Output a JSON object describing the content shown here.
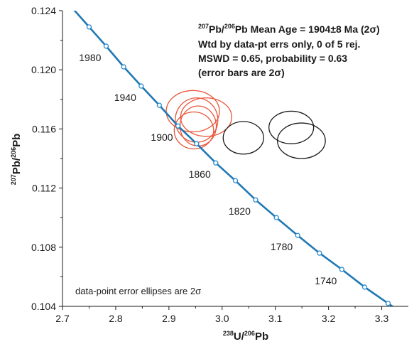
{
  "chart_data": {
    "type": "scatter",
    "title": "",
    "xlabel": {
      "sup1": "238",
      "main1": "U/",
      "sup2": "206",
      "main2": "Pb"
    },
    "ylabel": {
      "sup1": "207",
      "main1": "Pb/",
      "sup2": "206",
      "main2": "Pb"
    },
    "xlim": [
      2.7,
      3.35
    ],
    "ylim": [
      0.104,
      0.124
    ],
    "x_ticks": [
      "2.7",
      "2.8",
      "2.9",
      "3.0",
      "3.1",
      "3.2",
      "3.3"
    ],
    "y_ticks": [
      "0.104",
      "0.108",
      "0.112",
      "0.116",
      "0.120",
      "0.124"
    ],
    "grid": false,
    "concordia": {
      "color": "#1f78b4",
      "marker_color": "#2a8ad0",
      "points": [
        {
          "age": 1990,
          "x": 2.75,
          "y": 0.1229
        },
        {
          "age": 1980,
          "x": 2.782,
          "y": 0.1216
        },
        {
          "age": 1960,
          "x": 2.815,
          "y": 0.1202
        },
        {
          "age": 1940,
          "x": 2.848,
          "y": 0.1189
        },
        {
          "age": 1920,
          "x": 2.882,
          "y": 0.1176
        },
        {
          "age": 1900,
          "x": 2.917,
          "y": 0.1162
        },
        {
          "age": 1880,
          "x": 2.952,
          "y": 0.115
        },
        {
          "age": 1860,
          "x": 2.988,
          "y": 0.1137
        },
        {
          "age": 1840,
          "x": 3.025,
          "y": 0.1125
        },
        {
          "age": 1820,
          "x": 3.063,
          "y": 0.1112
        },
        {
          "age": 1800,
          "x": 3.102,
          "y": 0.11
        },
        {
          "age": 1780,
          "x": 3.142,
          "y": 0.1088
        },
        {
          "age": 1760,
          "x": 3.183,
          "y": 0.1076
        },
        {
          "age": 1740,
          "x": 3.225,
          "y": 0.1065
        },
        {
          "age": 1720,
          "x": 3.268,
          "y": 0.1053
        },
        {
          "age": 1700,
          "x": 3.312,
          "y": 0.1042
        }
      ],
      "age_labels": [
        {
          "text": "1980",
          "age": 1980
        },
        {
          "text": "1940",
          "age": 1940
        },
        {
          "text": "1900",
          "age": 1900
        },
        {
          "text": "1860",
          "age": 1860
        },
        {
          "text": "1820",
          "age": 1820
        },
        {
          "text": "1780",
          "age": 1780
        },
        {
          "text": "1740",
          "age": 1740
        }
      ]
    },
    "series": [
      {
        "color": "#e8553a",
        "ellipses": [
          {
            "x": 2.945,
            "y": 0.1172,
            "rx": 0.05,
            "ry": 0.0014
          },
          {
            "x": 2.952,
            "y": 0.1166,
            "rx": 0.04,
            "ry": 0.0015
          },
          {
            "x": 2.97,
            "y": 0.1168,
            "rx": 0.048,
            "ry": 0.0013
          },
          {
            "x": 2.955,
            "y": 0.1162,
            "rx": 0.034,
            "ry": 0.00135
          },
          {
            "x": 2.947,
            "y": 0.1159,
            "rx": 0.037,
            "ry": 0.00125
          }
        ]
      },
      {
        "color": "#1a1a1a",
        "ellipses": [
          {
            "x": 3.04,
            "y": 0.1154,
            "rx": 0.038,
            "ry": 0.0011
          },
          {
            "x": 3.13,
            "y": 0.1161,
            "rx": 0.042,
            "ry": 0.0011
          },
          {
            "x": 3.149,
            "y": 0.1152,
            "rx": 0.045,
            "ry": 0.0012
          }
        ]
      }
    ],
    "annotation": {
      "line1": {
        "sup1": "207",
        "t1": "Pb/",
        "sup2": "206",
        "t2": "Pb Mean Age = 1904±8 Ma (2σ)"
      },
      "line2": "Wtd by data-pt errs only, 0 of 5 rej.",
      "line3": "MSWD = 0.65, probability = 0.63",
      "line4": "(error bars are 2σ)"
    },
    "footnote": "data-point error ellipses are 2σ"
  }
}
